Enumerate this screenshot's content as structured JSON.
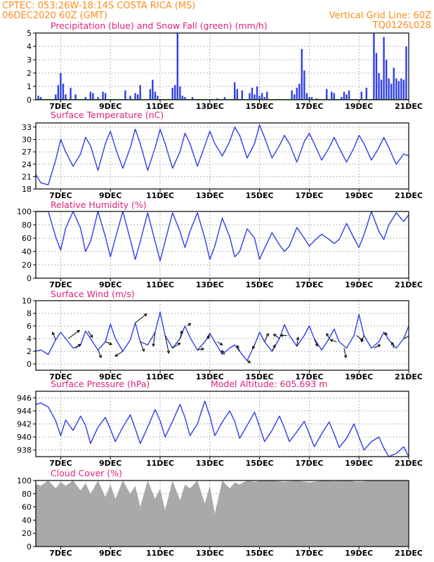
{
  "header": {
    "line1_left": "CPTEC:   053:26W-18:14S   COSTA RICA (MS)",
    "line2_left": "06DEC2020 60Z (GMT)",
    "line1_right": "Vertical Grid Line: 60Z",
    "line2_right": "TQ0126L028"
  },
  "colors": {
    "series": "#2f3fe6",
    "snow": "#1fa01f",
    "cloud": "#a9a9a9",
    "header": "#ff8c1a",
    "title": "#e0207a"
  },
  "x_axis": {
    "range_days": [
      6,
      21
    ],
    "ticks": [
      {
        "day": 7,
        "label": "7DEC"
      },
      {
        "day": 9,
        "label": "9DEC"
      },
      {
        "day": 11,
        "label": "11DEC"
      },
      {
        "day": 13,
        "label": "13DEC"
      },
      {
        "day": 15,
        "label": "15DEC"
      },
      {
        "day": 17,
        "label": "17DEC"
      },
      {
        "day": 19,
        "label": "19DEC"
      },
      {
        "day": 21,
        "label": "21DEC"
      }
    ]
  },
  "chart_data": [
    {
      "id": "precip",
      "type": "bar",
      "title": "Precipitation (blue) and Snow Fall (green) (mm/h)",
      "ylim": [
        0,
        5
      ],
      "yticks": [
        0,
        1,
        2,
        3,
        4,
        5
      ],
      "snow_value": 0,
      "x": [
        6.1,
        6.2,
        6.8,
        6.9,
        7.0,
        7.1,
        7.2,
        7.4,
        7.6,
        8.0,
        8.2,
        8.3,
        8.5,
        8.7,
        8.8,
        9.6,
        9.8,
        10.0,
        10.1,
        10.2,
        10.6,
        10.7,
        10.8,
        10.9,
        11.5,
        11.6,
        11.7,
        11.8,
        11.9,
        12.0,
        12.3,
        13.3,
        13.6,
        14.0,
        14.1,
        14.3,
        14.6,
        14.7,
        14.8,
        14.9,
        15.0,
        15.1,
        15.2,
        15.3,
        16.3,
        16.4,
        16.5,
        16.6,
        16.7,
        16.8,
        16.9,
        17.0,
        17.1,
        17.3,
        17.7,
        17.9,
        18.0,
        18.3,
        18.4,
        18.5,
        18.6,
        19.1,
        19.3,
        19.6,
        19.7,
        19.8,
        19.9,
        20.0,
        20.1,
        20.2,
        20.3,
        20.4,
        20.5,
        20.6,
        20.7,
        20.8,
        20.9
      ],
      "values": [
        0.3,
        0.2,
        0.4,
        1.1,
        2.0,
        1.2,
        0.4,
        0.9,
        0.4,
        0.2,
        0.6,
        0.5,
        0.2,
        0.6,
        0.5,
        0.7,
        0.3,
        0.5,
        0.4,
        1.1,
        0.8,
        1.5,
        0.6,
        0.3,
        0.9,
        1.1,
        5.0,
        1.0,
        0.3,
        0.2,
        0.2,
        0.1,
        0.2,
        1.3,
        0.8,
        0.7,
        0.5,
        0.9,
        0.4,
        1.0,
        0.3,
        0.5,
        0.2,
        0.6,
        0.7,
        0.4,
        0.9,
        1.2,
        3.8,
        2.2,
        0.5,
        0.2,
        0.2,
        0.1,
        0.8,
        0.6,
        0.5,
        0.2,
        0.6,
        0.4,
        0.7,
        0.6,
        0.9,
        5.0,
        3.5,
        2.0,
        1.5,
        4.7,
        3.0,
        1.6,
        1.2,
        2.4,
        1.6,
        1.4,
        1.6,
        1.5,
        4.0
      ]
    },
    {
      "id": "temp",
      "type": "line",
      "title": "Surface Temperature (nC)",
      "ylim": [
        18,
        34
      ],
      "yticks": [
        18,
        21,
        24,
        27,
        30,
        33
      ],
      "x": [
        6.0,
        6.2,
        6.5,
        6.8,
        7.0,
        7.2,
        7.5,
        7.8,
        8.0,
        8.2,
        8.5,
        8.8,
        9.0,
        9.2,
        9.5,
        9.8,
        10.0,
        10.2,
        10.5,
        10.8,
        11.0,
        11.2,
        11.5,
        11.8,
        12.0,
        12.2,
        12.5,
        12.8,
        13.0,
        13.2,
        13.5,
        13.8,
        14.0,
        14.2,
        14.5,
        14.8,
        15.0,
        15.2,
        15.5,
        15.8,
        16.0,
        16.2,
        16.5,
        16.8,
        17.0,
        17.2,
        17.5,
        17.8,
        18.0,
        18.2,
        18.5,
        18.8,
        19.0,
        19.2,
        19.5,
        19.8,
        20.0,
        20.2,
        20.5,
        20.8,
        21.0
      ],
      "values": [
        21.5,
        19.5,
        19.0,
        25.0,
        30.0,
        27.0,
        23.5,
        26.5,
        30.5,
        28.5,
        22.5,
        29.0,
        32.0,
        28.0,
        23.0,
        28.0,
        32.5,
        29.0,
        22.5,
        28.0,
        32.5,
        29.0,
        23.0,
        27.0,
        31.5,
        29.0,
        23.5,
        28.5,
        32.0,
        29.0,
        26.0,
        29.5,
        33.0,
        31.0,
        25.5,
        29.0,
        33.5,
        30.5,
        25.5,
        28.5,
        31.0,
        29.0,
        24.5,
        29.5,
        31.5,
        29.0,
        25.0,
        28.0,
        30.5,
        28.0,
        24.5,
        28.0,
        31.0,
        29.0,
        25.0,
        28.0,
        30.5,
        28.0,
        24.0,
        26.5,
        26.0
      ]
    },
    {
      "id": "rh",
      "type": "line",
      "title": "Relative Humidity (%)",
      "ylim": [
        0,
        100
      ],
      "yticks": [
        0,
        20,
        40,
        60,
        80,
        100
      ],
      "x": [
        6.0,
        6.2,
        6.5,
        6.8,
        7.0,
        7.2,
        7.5,
        7.8,
        8.0,
        8.2,
        8.5,
        8.8,
        9.0,
        9.2,
        9.5,
        9.8,
        10.0,
        10.2,
        10.5,
        10.8,
        11.0,
        11.2,
        11.5,
        11.8,
        12.0,
        12.2,
        12.5,
        12.8,
        13.0,
        13.2,
        13.5,
        13.8,
        14.0,
        14.2,
        14.5,
        14.8,
        15.0,
        15.2,
        15.5,
        15.8,
        16.0,
        16.2,
        16.5,
        16.8,
        17.0,
        17.2,
        17.5,
        17.8,
        18.0,
        18.2,
        18.5,
        18.8,
        19.0,
        19.2,
        19.5,
        19.8,
        20.0,
        20.2,
        20.5,
        20.8,
        21.0
      ],
      "values": [
        100,
        100,
        100,
        62,
        42,
        75,
        100,
        75,
        40,
        55,
        100,
        62,
        32,
        60,
        100,
        58,
        28,
        55,
        98,
        55,
        26,
        55,
        98,
        70,
        46,
        70,
        98,
        60,
        28,
        48,
        90,
        62,
        32,
        40,
        74,
        60,
        28,
        45,
        68,
        50,
        40,
        48,
        76,
        60,
        48,
        56,
        66,
        58,
        52,
        58,
        82,
        60,
        46,
        65,
        100,
        70,
        58,
        80,
        98,
        85,
        95
      ]
    },
    {
      "id": "wind",
      "type": "line",
      "title": "Surface Wind (m/s)",
      "ylim": [
        -1,
        10
      ],
      "yticks": [
        0,
        2,
        4,
        6,
        8,
        10
      ],
      "x": [
        6.0,
        6.2,
        6.5,
        6.8,
        7.0,
        7.2,
        7.5,
        7.8,
        8.0,
        8.2,
        8.5,
        8.8,
        9.0,
        9.2,
        9.5,
        9.8,
        10.0,
        10.2,
        10.5,
        10.8,
        11.0,
        11.2,
        11.5,
        11.8,
        12.0,
        12.2,
        12.5,
        12.8,
        13.0,
        13.2,
        13.5,
        13.8,
        14.0,
        14.2,
        14.5,
        14.8,
        15.0,
        15.2,
        15.5,
        15.8,
        16.0,
        16.2,
        16.5,
        16.8,
        17.0,
        17.2,
        17.5,
        17.8,
        18.0,
        18.2,
        18.5,
        18.8,
        19.0,
        19.2,
        19.5,
        19.8,
        20.0,
        20.2,
        20.5,
        20.8,
        21.0
      ],
      "values": [
        2.0,
        2.2,
        1.5,
        3.8,
        5.0,
        4.0,
        2.5,
        3.0,
        5.2,
        4.0,
        2.2,
        3.5,
        6.3,
        4.0,
        2.0,
        3.8,
        6.5,
        3.5,
        3.0,
        5.0,
        8.2,
        4.5,
        2.5,
        4.0,
        6.0,
        4.2,
        2.2,
        3.5,
        4.8,
        3.5,
        1.5,
        2.5,
        3.0,
        2.0,
        0.5,
        3.0,
        5.0,
        3.5,
        2.0,
        4.0,
        6.2,
        4.5,
        2.8,
        4.5,
        6.0,
        4.0,
        2.2,
        4.0,
        5.5,
        3.5,
        2.5,
        4.5,
        7.8,
        4.5,
        2.5,
        3.5,
        5.0,
        3.8,
        2.5,
        4.0,
        6.0
      ],
      "arrows": [
        {
          "day": 6.8,
          "u": -0.5,
          "v": 1.2
        },
        {
          "day": 7.3,
          "u": 1.8,
          "v": 1.3
        },
        {
          "day": 7.6,
          "u": 0.8,
          "v": 0.6
        },
        {
          "day": 8.1,
          "u": 0.7,
          "v": -1.0
        },
        {
          "day": 8.5,
          "u": 0.5,
          "v": -1.2
        },
        {
          "day": 8.8,
          "u": 1.0,
          "v": -0.4
        },
        {
          "day": 9.5,
          "u": -1.2,
          "v": -0.8
        },
        {
          "day": 10.0,
          "u": 1.8,
          "v": 1.4
        },
        {
          "day": 10.2,
          "u": 0.6,
          "v": -1.5
        },
        {
          "day": 10.8,
          "u": -0.3,
          "v": -2.2
        },
        {
          "day": 11.2,
          "u": 0.6,
          "v": -2.8
        },
        {
          "day": 11.5,
          "u": 1.2,
          "v": 0.8
        },
        {
          "day": 11.8,
          "u": 0.3,
          "v": 1.2
        },
        {
          "day": 12.1,
          "u": 0.5,
          "v": 0.4
        },
        {
          "day": 12.5,
          "u": 1.0,
          "v": 0.2
        },
        {
          "day": 13.0,
          "u": -0.3,
          "v": -0.8
        },
        {
          "day": 13.3,
          "u": 0.8,
          "v": -0.5
        },
        {
          "day": 13.6,
          "u": -0.5,
          "v": 0.6
        },
        {
          "day": 14.2,
          "u": -0.4,
          "v": 0.9
        },
        {
          "day": 14.5,
          "u": 0.5,
          "v": -0.3
        },
        {
          "day": 14.8,
          "u": -0.3,
          "v": -0.6
        },
        {
          "day": 15.2,
          "u": 0.6,
          "v": 1.3
        },
        {
          "day": 15.5,
          "u": 0.5,
          "v": 1.0
        },
        {
          "day": 15.8,
          "u": -0.9,
          "v": 0.7
        },
        {
          "day": 16.1,
          "u": -1.0,
          "v": 0.0
        },
        {
          "day": 16.5,
          "u": 0.2,
          "v": 1.4
        },
        {
          "day": 17.2,
          "u": 0.5,
          "v": -1.2
        },
        {
          "day": 17.8,
          "u": -0.4,
          "v": 0.8
        },
        {
          "day": 18.1,
          "u": -1.0,
          "v": 0.3
        },
        {
          "day": 18.4,
          "u": 0.3,
          "v": -1.5
        },
        {
          "day": 18.9,
          "u": 1.0,
          "v": -0.8
        },
        {
          "day": 19.2,
          "u": -0.4,
          "v": -1.0
        },
        {
          "day": 19.6,
          "u": 1.0,
          "v": 0.5
        },
        {
          "day": 20.0,
          "u": 0.5,
          "v": -0.4
        },
        {
          "day": 20.4,
          "u": -0.3,
          "v": 0.9
        },
        {
          "day": 20.8,
          "u": 1.6,
          "v": 0.8
        }
      ]
    },
    {
      "id": "pressure",
      "type": "line",
      "title": "Surface Pressure (hPa)",
      "extra_label": "Model Altitude: 605.693  m",
      "ylim": [
        937,
        947
      ],
      "yticks": [
        938,
        940,
        942,
        944,
        946
      ],
      "x": [
        6.0,
        6.2,
        6.5,
        6.8,
        7.0,
        7.2,
        7.5,
        7.8,
        8.0,
        8.2,
        8.5,
        8.8,
        9.0,
        9.2,
        9.5,
        9.8,
        10.0,
        10.2,
        10.5,
        10.8,
        11.0,
        11.2,
        11.5,
        11.8,
        12.0,
        12.2,
        12.5,
        12.8,
        13.0,
        13.2,
        13.5,
        13.8,
        14.0,
        14.2,
        14.5,
        14.8,
        15.0,
        15.2,
        15.5,
        15.8,
        16.0,
        16.2,
        16.5,
        16.8,
        17.0,
        17.2,
        17.5,
        17.8,
        18.0,
        18.2,
        18.5,
        18.8,
        19.0,
        19.2,
        19.5,
        19.8,
        20.0,
        20.2,
        20.5,
        20.8,
        21.0
      ],
      "values": [
        945.0,
        945.2,
        944.6,
        942.5,
        940.2,
        942.6,
        941.0,
        943.2,
        941.8,
        939.0,
        941.5,
        943.0,
        941.2,
        939.3,
        941.5,
        943.4,
        941.3,
        939.0,
        941.5,
        944.2,
        942.5,
        940.0,
        942.4,
        945.0,
        943.0,
        940.2,
        942.0,
        945.5,
        943.2,
        940.2,
        942.3,
        944.0,
        942.4,
        939.8,
        941.8,
        943.8,
        941.6,
        939.3,
        941.0,
        943.2,
        941.4,
        939.3,
        940.8,
        942.4,
        940.5,
        938.5,
        940.5,
        942.3,
        940.5,
        938.4,
        939.8,
        942.0,
        940.0,
        938.0,
        939.3,
        940.0,
        938.3,
        937.0,
        937.5,
        938.5,
        937.0
      ]
    },
    {
      "id": "cloud",
      "type": "area",
      "title": "Cloud Cover (%)",
      "ylim": [
        0,
        100
      ],
      "yticks": [
        0,
        20,
        40,
        60,
        80,
        100
      ],
      "x": [
        6.0,
        6.2,
        6.5,
        6.8,
        7.0,
        7.2,
        7.5,
        7.8,
        8.0,
        8.2,
        8.5,
        8.8,
        9.0,
        9.2,
        9.5,
        9.8,
        10.0,
        10.2,
        10.5,
        10.8,
        11.0,
        11.2,
        11.5,
        11.8,
        12.0,
        12.2,
        12.5,
        12.8,
        13.0,
        13.2,
        13.5,
        13.8,
        14.0,
        14.2,
        14.5,
        14.8,
        15.0,
        15.5,
        16.0,
        16.5,
        17.0,
        17.5,
        18.0,
        18.5,
        19.0,
        19.5,
        20.0,
        20.5,
        21.0
      ],
      "values": [
        95,
        92,
        100,
        88,
        98,
        92,
        100,
        85,
        96,
        80,
        100,
        75,
        94,
        72,
        100,
        80,
        92,
        60,
        100,
        72,
        88,
        55,
        100,
        70,
        94,
        88,
        100,
        65,
        92,
        50,
        100,
        88,
        97,
        94,
        100,
        98,
        100,
        100,
        98,
        100,
        97,
        100,
        99,
        100,
        98,
        100,
        100,
        100,
        100
      ]
    }
  ]
}
